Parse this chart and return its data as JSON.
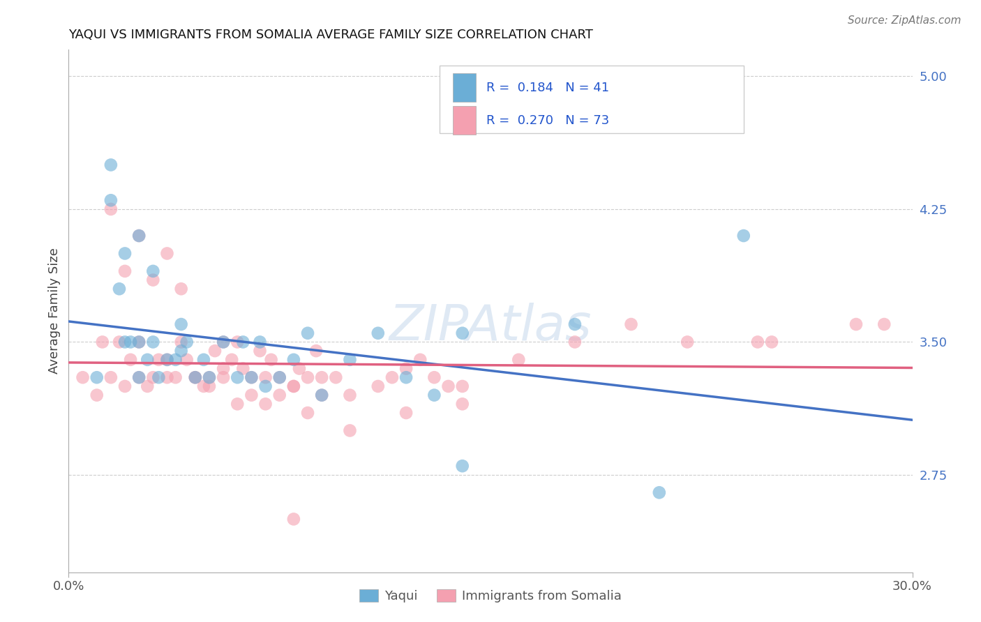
{
  "title": "YAQUI VS IMMIGRANTS FROM SOMALIA AVERAGE FAMILY SIZE CORRELATION CHART",
  "source_text": "Source: ZipAtlas.com",
  "ylabel": "Average Family Size",
  "right_yticks": [
    5.0,
    4.25,
    3.5,
    2.75
  ],
  "xmin": 0.0,
  "xmax": 0.3,
  "ymin": 2.2,
  "ymax": 5.15,
  "watermark": "ZIPAtlas",
  "yaqui_color": "#6baed6",
  "somalia_color": "#f4a0b0",
  "yaqui_line_color": "#4472C4",
  "somalia_line_color": "#e06080",
  "yaqui_scatter_x": [
    0.01,
    0.015,
    0.018,
    0.02,
    0.022,
    0.025,
    0.025,
    0.028,
    0.03,
    0.032,
    0.035,
    0.038,
    0.04,
    0.04,
    0.042,
    0.045,
    0.048,
    0.05,
    0.055,
    0.06,
    0.062,
    0.065,
    0.068,
    0.07,
    0.075,
    0.08,
    0.085,
    0.09,
    0.1,
    0.11,
    0.12,
    0.13,
    0.14,
    0.015,
    0.02,
    0.025,
    0.03,
    0.14,
    0.18,
    0.21,
    0.24
  ],
  "yaqui_scatter_y": [
    3.3,
    4.3,
    3.8,
    3.5,
    3.5,
    3.3,
    3.5,
    3.4,
    3.5,
    3.3,
    3.4,
    3.4,
    3.45,
    3.6,
    3.5,
    3.3,
    3.4,
    3.3,
    3.5,
    3.3,
    3.5,
    3.3,
    3.5,
    3.25,
    3.3,
    3.4,
    3.55,
    3.2,
    3.4,
    3.55,
    3.3,
    3.2,
    2.8,
    4.5,
    4.0,
    4.1,
    3.9,
    3.55,
    3.6,
    2.65,
    4.1
  ],
  "somalia_scatter_x": [
    0.005,
    0.01,
    0.012,
    0.015,
    0.018,
    0.02,
    0.022,
    0.025,
    0.025,
    0.028,
    0.03,
    0.032,
    0.035,
    0.035,
    0.038,
    0.04,
    0.042,
    0.045,
    0.048,
    0.05,
    0.052,
    0.055,
    0.055,
    0.058,
    0.06,
    0.062,
    0.065,
    0.068,
    0.07,
    0.072,
    0.075,
    0.08,
    0.082,
    0.085,
    0.088,
    0.09,
    0.095,
    0.1,
    0.11,
    0.115,
    0.12,
    0.125,
    0.13,
    0.135,
    0.14,
    0.015,
    0.02,
    0.025,
    0.03,
    0.035,
    0.04,
    0.045,
    0.05,
    0.055,
    0.06,
    0.065,
    0.07,
    0.075,
    0.08,
    0.085,
    0.09,
    0.18,
    0.22,
    0.08,
    0.1,
    0.12,
    0.14,
    0.16,
    0.2,
    0.245,
    0.25,
    0.28,
    0.29
  ],
  "somalia_scatter_y": [
    3.3,
    3.2,
    3.5,
    3.3,
    3.5,
    3.25,
    3.4,
    3.5,
    3.3,
    3.25,
    3.3,
    3.4,
    3.4,
    3.3,
    3.3,
    3.5,
    3.4,
    3.3,
    3.25,
    3.3,
    3.45,
    3.3,
    3.5,
    3.4,
    3.5,
    3.35,
    3.3,
    3.45,
    3.3,
    3.4,
    3.3,
    3.25,
    3.35,
    3.3,
    3.45,
    3.3,
    3.3,
    3.2,
    3.25,
    3.3,
    3.35,
    3.4,
    3.3,
    3.25,
    3.25,
    4.25,
    3.9,
    4.1,
    3.85,
    4.0,
    3.8,
    3.3,
    3.25,
    3.35,
    3.15,
    3.2,
    3.15,
    3.2,
    3.25,
    3.1,
    3.2,
    3.5,
    3.5,
    2.5,
    3.0,
    3.1,
    3.15,
    3.4,
    3.6,
    3.5,
    3.5,
    3.6,
    3.6
  ]
}
